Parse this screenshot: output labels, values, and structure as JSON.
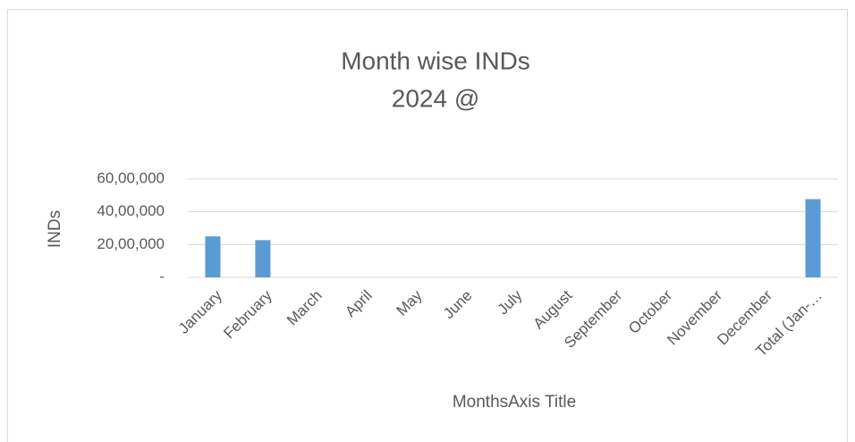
{
  "chart_data": {
    "type": "bar",
    "title": "Month wise INDs",
    "subtitle": "2024 @",
    "x_label": "MonthsAxis Title",
    "y_label": "INDs",
    "categories": [
      "January",
      "February",
      "March",
      "April",
      "May",
      "June",
      "July",
      "August",
      "September",
      "October",
      "November",
      "December",
      "Total (Jan-…"
    ],
    "values": [
      2500000,
      2270000,
      null,
      null,
      null,
      null,
      null,
      null,
      null,
      null,
      null,
      null,
      4770000
    ],
    "color": "#5b9bd5",
    "ylim": [
      0,
      6000000
    ],
    "yticks": [
      {
        "value": 0,
        "label": "-"
      },
      {
        "value": 2000000,
        "label": "20,00,000"
      },
      {
        "value": 4000000,
        "label": "40,00,000"
      },
      {
        "value": 6000000,
        "label": "60,00,000"
      }
    ],
    "grid": true
  }
}
